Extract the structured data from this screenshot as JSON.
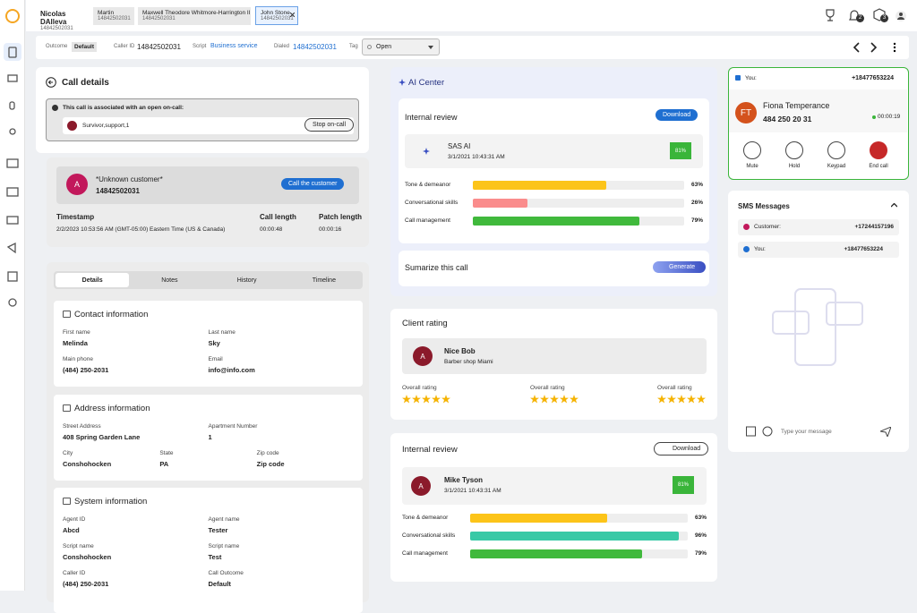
{
  "tabs": [
    {
      "name": "Nicolas DAlleva",
      "number": "14842502031"
    },
    {
      "name": "Martin",
      "number": "14842502031"
    },
    {
      "name": "Maxwell Theodore Whitmore-Harrington III",
      "number": "14842502031"
    },
    {
      "name": "John Stone",
      "number": "14842502031"
    }
  ],
  "badges": [
    "2",
    "3"
  ],
  "toolbar": {
    "outcome_label": "Outcome",
    "outcome": "Default",
    "caller_id_label": "Caller ID",
    "caller_id": "14842502031",
    "script_label": "Script",
    "script": "Business service",
    "dialed_label": "Dialed",
    "dialed": "14842502031",
    "tag_label": "Tag",
    "tag": "Open"
  },
  "call_details": {
    "title": "Call details",
    "notice": "This call is associated with an open on-call:",
    "oncall": "Survivor,support,1",
    "stop": "Stop on-call",
    "customer_initial": "A",
    "customer": "*Unknown customer*",
    "customer_number": "14842502031",
    "call_button": "Call the customer",
    "columns": [
      "Timestamp",
      "Call length",
      "Patch length"
    ],
    "values": [
      "2/2/2023 10:53:56 AM (GMT-05:00) Eastern Time (US & Canada)",
      "00:00:48",
      "00:00:16"
    ]
  },
  "detail_tabs": [
    "Details",
    "Notes",
    "History",
    "Timeline"
  ],
  "sections": [
    {
      "title": "Contact information",
      "fields": [
        {
          "label": "First name",
          "value": "Melinda"
        },
        {
          "label": "Last name",
          "value": "Sky"
        },
        {
          "label": "Main phone",
          "value": "(484) 250-2031"
        },
        {
          "label": "Email",
          "value": "info@info.com"
        }
      ]
    },
    {
      "title": "Address information",
      "fields": [
        {
          "label": "Street Address",
          "value": "408 Spring Garden Lane"
        },
        {
          "label": "Apartment Number",
          "value": "1"
        },
        {
          "label": "City",
          "value": "Conshohocken"
        },
        {
          "label": "State",
          "value": "PA"
        },
        {
          "label": "Zip code",
          "value": "Zip code"
        }
      ]
    },
    {
      "title": "System information",
      "fields": [
        {
          "label": "Agent ID",
          "value": "Abcd"
        },
        {
          "label": "Agent name",
          "value": "Tester"
        },
        {
          "label": "Script name",
          "value": "Conshohocken"
        },
        {
          "label": "Script name",
          "value": "Test"
        },
        {
          "label": "Caller ID",
          "value": "(484) 250-2031"
        },
        {
          "label": "Call Outcome",
          "value": "Default"
        }
      ]
    }
  ],
  "ai_center": {
    "title": "AI Center",
    "review_title": "Internal review",
    "download": "Download",
    "reviewer": "SAS AI",
    "date": "3/1/2021 10:43:31 AM",
    "score": {
      "value": 81,
      "label": "81%"
    },
    "metrics": [
      {
        "name": "Tone & demeanor",
        "value": 63,
        "label": "63%",
        "color": "#fcc419"
      },
      {
        "name": "Conversational skills",
        "value": 26,
        "label": "26%",
        "color": "#fa8c8c"
      },
      {
        "name": "Call management",
        "value": 79,
        "label": "79%",
        "color": "#40b93c"
      }
    ],
    "summarize": "Sumarize this call",
    "generate": "Generate"
  },
  "client_rating": {
    "title": "Client rating",
    "initial": "A",
    "name": "Nice Bob",
    "subtitle": "Barber shop Miami",
    "ratings": [
      {
        "label": "Overall rating",
        "stars": 5
      },
      {
        "label": "Overall rating",
        "stars": 5
      },
      {
        "label": "Overall rating",
        "stars": 5
      }
    ]
  },
  "internal_review": {
    "title": "Internal review",
    "download": "Download",
    "initial": "A",
    "reviewer": "Mike Tyson",
    "date": "3/1/2021 10:43:31 AM",
    "score": {
      "value": 81,
      "label": "81%"
    },
    "metrics": [
      {
        "name": "Tone & demeanor",
        "value": 63,
        "label": "63%",
        "color": "#fcc419"
      },
      {
        "name": "Conversational skills",
        "value": 96,
        "label": "96%",
        "color": "#38c9a6"
      },
      {
        "name": "Call management",
        "value": 79,
        "label": "79%",
        "color": "#40b93c"
      }
    ]
  },
  "call": {
    "you_label": "You:",
    "you_number": "+18477653224",
    "initials": "FT",
    "name": "Fiona Temperance",
    "number": "484 250 20 31",
    "duration": "00:00:19",
    "controls": [
      "Mute",
      "Hold",
      "Keypad",
      "End call"
    ]
  },
  "sms": {
    "title": "SMS Messages",
    "contacts": [
      {
        "label": "Customer:",
        "number": "+17244157196"
      },
      {
        "label": "You:",
        "number": "+18477653224"
      }
    ],
    "placeholder": "Type your message"
  }
}
